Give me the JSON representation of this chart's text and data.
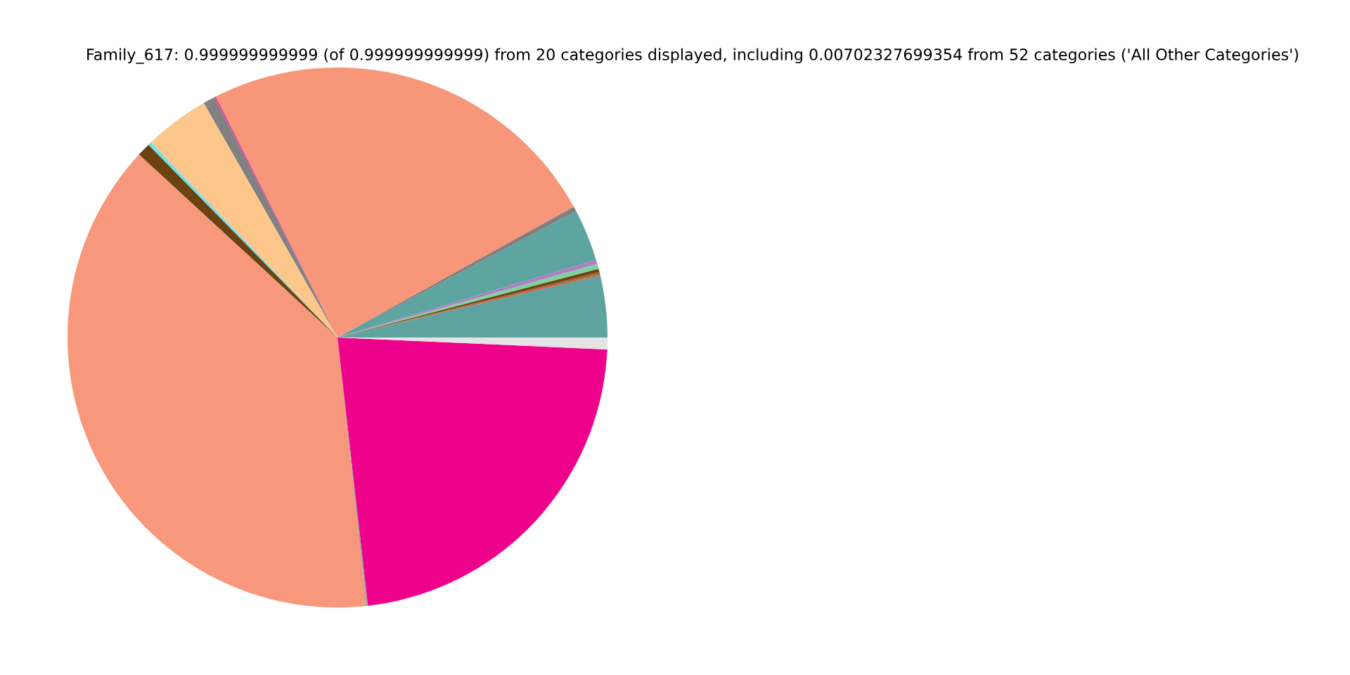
{
  "chart_data": {
    "type": "pie",
    "title": "Family_617: 0.999999999999 (of 0.999999999999) from 20 categories displayed, including 0.00702327699354 from 52 categories ('All Other Categories')",
    "categories": [
      null,
      null,
      null,
      null,
      null,
      null,
      null,
      null,
      null,
      null,
      null,
      null,
      null,
      null,
      null,
      null,
      null,
      null
    ],
    "values": [
      3.7,
      0.1,
      0.1,
      0.2,
      0.3,
      0.25,
      3.1,
      0.3,
      24.4,
      0.1,
      0.7,
      3.9,
      0.2,
      0.8,
      38.55,
      0.1,
      22.5,
      0.7
    ],
    "colors": [
      "#5fa3a0",
      "#d9534f",
      "#8b6914",
      "#6b4210",
      "#7fd1a0",
      "#b07cc6",
      "#5ea4a1",
      "#7f7f7f",
      "#f8967a",
      "#e0409a",
      "#818181",
      "#fdc68a",
      "#6ee0f0",
      "#6a4311",
      "#f7977b",
      "#a0a0a0",
      "#ee028b",
      "#e4e4e4"
    ]
  }
}
